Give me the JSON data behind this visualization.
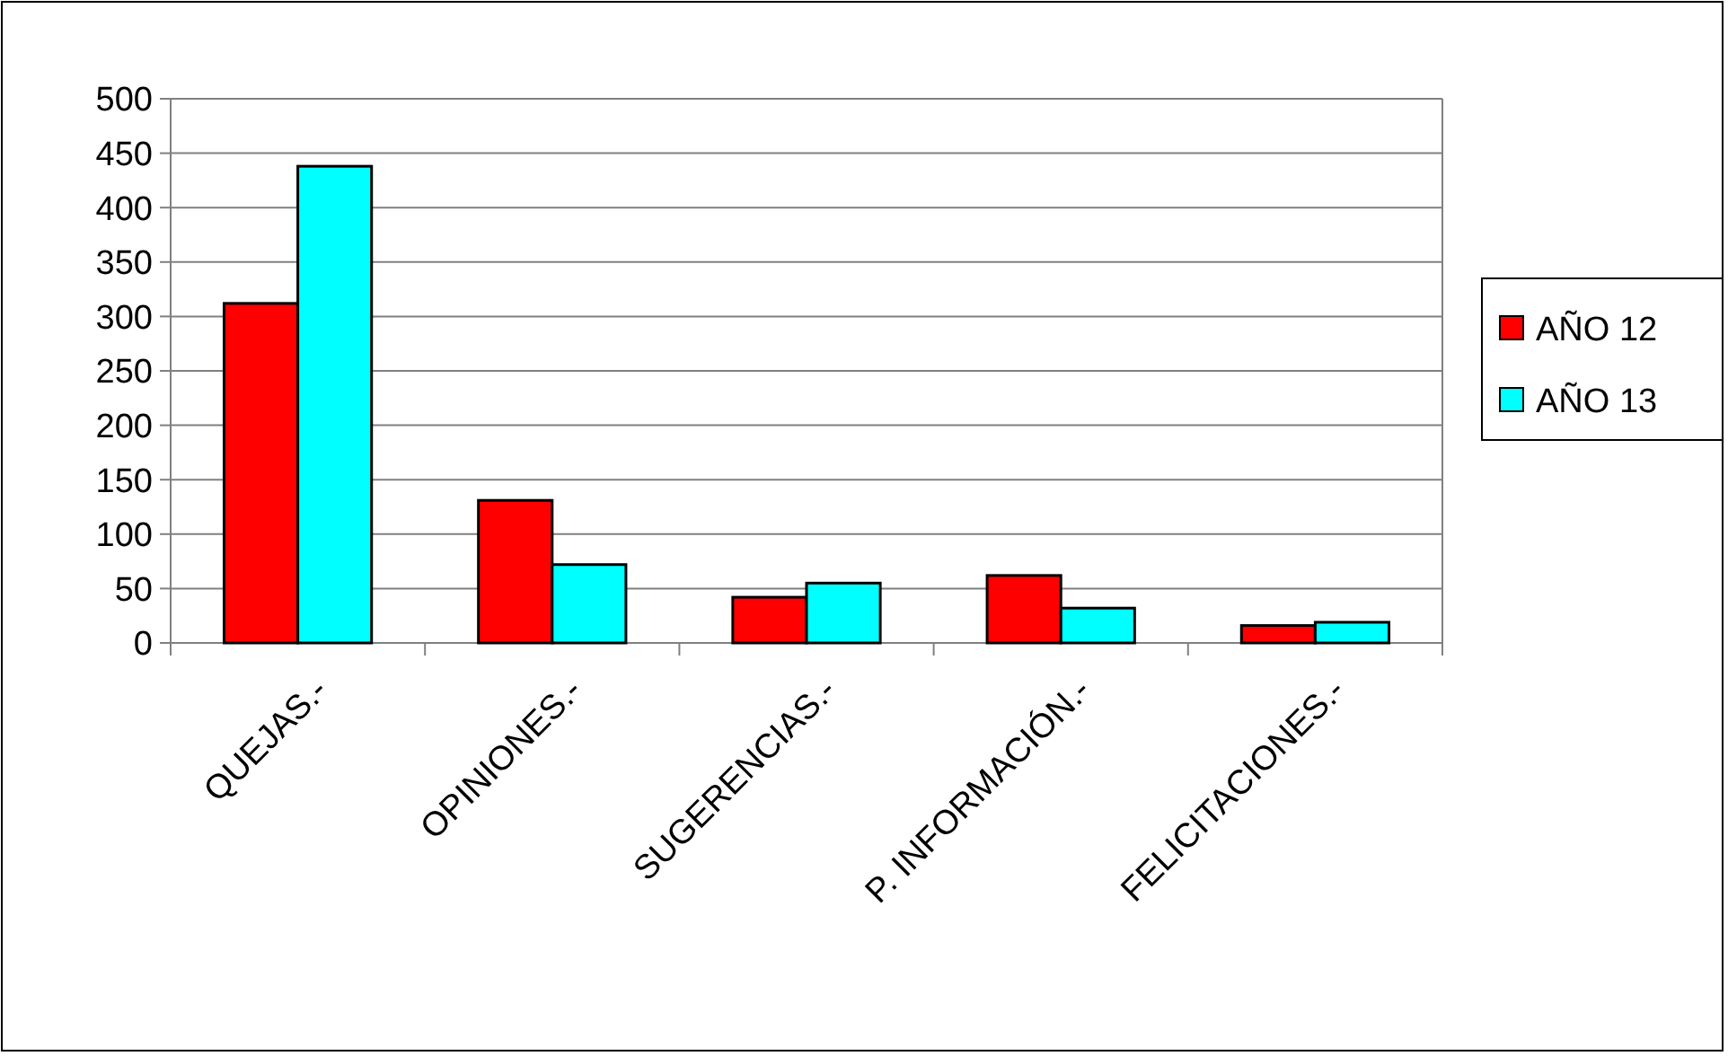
{
  "chart_data": {
    "type": "bar",
    "categories": [
      "QUEJAS.-",
      "OPINIONES.-",
      "SUGERENCIAS.-",
      "P. INFORMACIÓN.-",
      "FELICITACIONES.-"
    ],
    "series": [
      {
        "name": "AÑO 12",
        "color": "#ff0000",
        "values": [
          312,
          131,
          42,
          62,
          16
        ]
      },
      {
        "name": "AÑO 13",
        "color": "#00ffff",
        "values": [
          438,
          72,
          55,
          32,
          19
        ]
      }
    ],
    "ylim": [
      0,
      500
    ],
    "yticks": [
      0,
      50,
      100,
      150,
      200,
      250,
      300,
      350,
      400,
      450,
      500
    ],
    "grid": "y",
    "legend": "right"
  }
}
